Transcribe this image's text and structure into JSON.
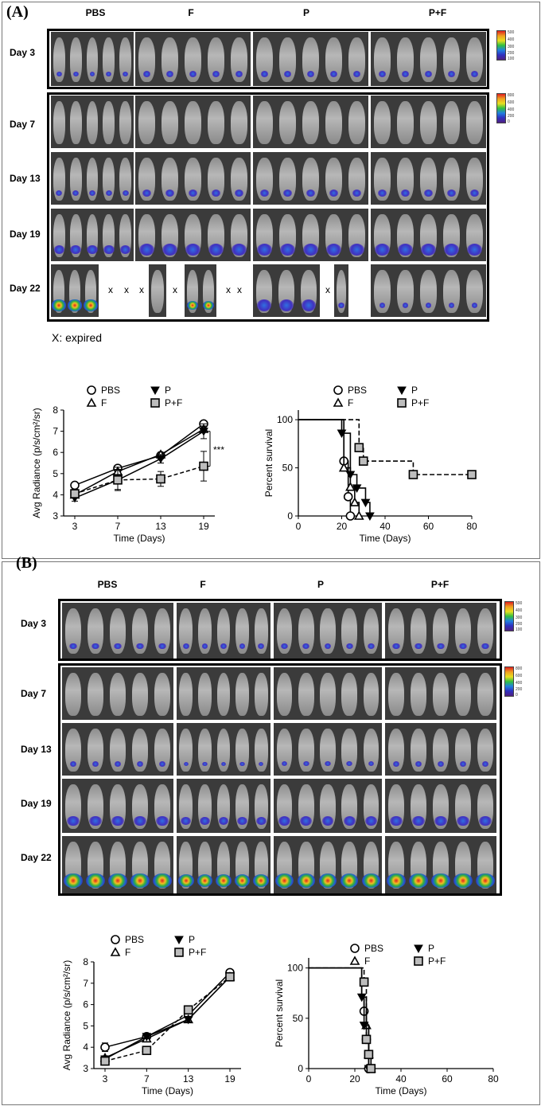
{
  "panelA": {
    "label": "(A)",
    "groups": [
      "PBS",
      "F",
      "P",
      "P+F"
    ],
    "days": [
      "Day 3",
      "Day 7",
      "Day 13",
      "Day 19",
      "Day 22"
    ],
    "x_mark": "X",
    "day22_x_marks": [
      "x",
      "x",
      "x",
      "x",
      "x",
      "x",
      "x"
    ],
    "expired_note": "X: expired",
    "colorbar_top": [
      "500",
      "400",
      "300",
      "200",
      "100"
    ],
    "colorbar_bottom": [
      "800",
      "600",
      "400",
      "200",
      "0"
    ]
  },
  "panelB": {
    "label": "(B)",
    "groups": [
      "PBS",
      "F",
      "P",
      "P+F"
    ],
    "days": [
      "Day 3",
      "Day 7",
      "Day 13",
      "Day 19",
      "Day 22"
    ],
    "colorbar_top": [
      "500",
      "400",
      "300",
      "200",
      "100"
    ],
    "colorbar_bottom": [
      "800",
      "600",
      "400",
      "200",
      "0"
    ]
  },
  "chart_data": [
    {
      "id": "A-radiance",
      "type": "line",
      "title": "",
      "xlabel": "Time (Days)",
      "ylabel": "Avg Radiance (p/s/cm²/sr)",
      "categories": [
        "3",
        "7",
        "13",
        "19"
      ],
      "ylim": [
        3,
        8
      ],
      "yticks": [
        3,
        4,
        5,
        6,
        7,
        8
      ],
      "series": [
        {
          "name": "PBS",
          "marker": "circle",
          "dashed": false,
          "values": [
            4.45,
            5.25,
            5.85,
            7.35
          ],
          "err": [
            0.1,
            0.1,
            0.1,
            0.1
          ]
        },
        {
          "name": "F",
          "marker": "triangle-up",
          "dashed": false,
          "values": [
            4.0,
            5.1,
            5.9,
            7.1
          ],
          "err": [
            0.15,
            0.2,
            0.1,
            0.15
          ]
        },
        {
          "name": "P",
          "marker": "triangle-down",
          "dashed": false,
          "values": [
            3.85,
            4.7,
            5.7,
            7.0
          ],
          "err": [
            0.15,
            0.5,
            0.2,
            0.35
          ]
        },
        {
          "name": "P+F",
          "marker": "square",
          "dashed": true,
          "values": [
            4.05,
            4.7,
            4.75,
            5.35
          ],
          "err": [
            0.2,
            0.45,
            0.35,
            0.7
          ]
        }
      ],
      "annotation": "***",
      "legend_placement": "top"
    },
    {
      "id": "A-survival",
      "type": "line",
      "title": "",
      "xlabel": "Time (Days)",
      "ylabel": "Percent survival",
      "xlim": [
        0,
        80
      ],
      "xticks": [
        0,
        20,
        40,
        60,
        80
      ],
      "ylim": [
        0,
        110
      ],
      "yticks": [
        0,
        50,
        100
      ],
      "series": [
        {
          "name": "PBS",
          "marker": "circle",
          "dashed": false,
          "steps": [
            [
              0,
              100
            ],
            [
              21,
              100
            ],
            [
              21,
              57
            ],
            [
              23,
              57
            ],
            [
              23,
              20
            ],
            [
              24,
              20
            ],
            [
              24,
              0
            ]
          ],
          "markers": [
            [
              21,
              57
            ],
            [
              23,
              20
            ],
            [
              24,
              0
            ]
          ]
        },
        {
          "name": "F",
          "marker": "triangle-up",
          "dashed": false,
          "steps": [
            [
              0,
              100
            ],
            [
              21,
              100
            ],
            [
              21,
              50
            ],
            [
              24,
              50
            ],
            [
              24,
              30
            ],
            [
              26,
              30
            ],
            [
              26,
              14
            ],
            [
              28,
              14
            ],
            [
              28,
              0
            ]
          ],
          "markers": [
            [
              21,
              50
            ],
            [
              24,
              30
            ],
            [
              26,
              14
            ],
            [
              28,
              0
            ]
          ]
        },
        {
          "name": "P",
          "marker": "triangle-down",
          "dashed": false,
          "steps": [
            [
              0,
              100
            ],
            [
              20,
              100
            ],
            [
              20,
              86
            ],
            [
              24,
              86
            ],
            [
              24,
              43
            ],
            [
              27,
              43
            ],
            [
              27,
              29
            ],
            [
              31,
              29
            ],
            [
              31,
              14
            ],
            [
              33,
              14
            ],
            [
              33,
              0
            ]
          ],
          "markers": [
            [
              20,
              86
            ],
            [
              24,
              43
            ],
            [
              27,
              29
            ],
            [
              31,
              14
            ],
            [
              33,
              0
            ]
          ]
        },
        {
          "name": "P+F",
          "marker": "square",
          "dashed": true,
          "steps": [
            [
              0,
              100
            ],
            [
              28,
              100
            ],
            [
              28,
              71
            ],
            [
              30,
              71
            ],
            [
              30,
              57
            ],
            [
              53,
              57
            ],
            [
              53,
              43
            ],
            [
              80,
              43
            ]
          ],
          "markers": [
            [
              28,
              71
            ],
            [
              30,
              57
            ],
            [
              53,
              43
            ],
            [
              80,
              43
            ]
          ]
        }
      ],
      "legend_placement": "top"
    },
    {
      "id": "B-radiance",
      "type": "line",
      "title": "",
      "xlabel": "Time (Days)",
      "ylabel": "Avg Radiance (p/s/cm²/sr)",
      "categories": [
        "3",
        "7",
        "13",
        "19"
      ],
      "ylim": [
        3,
        8
      ],
      "yticks": [
        3,
        4,
        5,
        6,
        7,
        8
      ],
      "series": [
        {
          "name": "PBS",
          "marker": "circle",
          "dashed": false,
          "values": [
            4.0,
            4.5,
            5.5,
            7.5
          ],
          "err": [
            0.2,
            0.1,
            0.1,
            0.1
          ]
        },
        {
          "name": "F",
          "marker": "triangle-up",
          "dashed": false,
          "values": [
            3.5,
            4.4,
            5.3,
            7.3
          ],
          "err": [
            0.1,
            0.1,
            0.1,
            0.1
          ]
        },
        {
          "name": "P",
          "marker": "triangle-down",
          "dashed": false,
          "values": [
            3.45,
            4.5,
            5.3,
            7.3
          ],
          "err": [
            0.1,
            0.1,
            0.1,
            0.1
          ]
        },
        {
          "name": "P+F",
          "marker": "square",
          "dashed": true,
          "values": [
            3.35,
            3.85,
            5.75,
            7.3
          ],
          "err": [
            0.1,
            0.15,
            0.1,
            0.1
          ]
        }
      ],
      "legend_placement": "top"
    },
    {
      "id": "B-survival",
      "type": "line",
      "title": "",
      "xlabel": "Time (Days)",
      "ylabel": "Percent survival",
      "xlim": [
        0,
        80
      ],
      "xticks": [
        0,
        20,
        40,
        60,
        80
      ],
      "ylim": [
        0,
        110
      ],
      "yticks": [
        0,
        50,
        100
      ],
      "series": [
        {
          "name": "PBS",
          "marker": "circle",
          "dashed": false,
          "steps": [
            [
              0,
              100
            ],
            [
              23,
              100
            ],
            [
              23,
              71
            ],
            [
              24,
              71
            ],
            [
              24,
              57
            ],
            [
              25,
              57
            ],
            [
              25,
              29
            ],
            [
              26,
              29
            ],
            [
              26,
              0
            ]
          ],
          "markers": [
            [
              24,
              57
            ],
            [
              25,
              29
            ],
            [
              26,
              0
            ]
          ]
        },
        {
          "name": "F",
          "marker": "triangle-up",
          "dashed": false,
          "steps": [
            [
              0,
              100
            ],
            [
              23,
              100
            ],
            [
              23,
              71
            ],
            [
              25,
              71
            ],
            [
              25,
              43
            ],
            [
              26,
              43
            ],
            [
              26,
              14
            ],
            [
              27,
              14
            ],
            [
              27,
              0
            ]
          ],
          "markers": [
            [
              25,
              43
            ],
            [
              26,
              14
            ],
            [
              27,
              0
            ]
          ]
        },
        {
          "name": "P",
          "marker": "triangle-down",
          "dashed": false,
          "steps": [
            [
              0,
              100
            ],
            [
              23,
              100
            ],
            [
              23,
              71
            ],
            [
              24,
              71
            ],
            [
              24,
              43
            ],
            [
              26,
              43
            ],
            [
              26,
              0
            ]
          ],
          "markers": [
            [
              23,
              71
            ],
            [
              24,
              43
            ],
            [
              26,
              0
            ]
          ]
        },
        {
          "name": "P+F",
          "marker": "square",
          "dashed": true,
          "steps": [
            [
              0,
              100
            ],
            [
              24,
              100
            ],
            [
              24,
              86
            ],
            [
              25,
              86
            ],
            [
              25,
              29
            ],
            [
              26,
              29
            ],
            [
              26,
              14
            ],
            [
              27,
              14
            ],
            [
              27,
              0
            ]
          ],
          "markers": [
            [
              24,
              86
            ],
            [
              25,
              29
            ],
            [
              26,
              14
            ],
            [
              27,
              0
            ]
          ]
        }
      ],
      "legend_placement": "top"
    }
  ]
}
